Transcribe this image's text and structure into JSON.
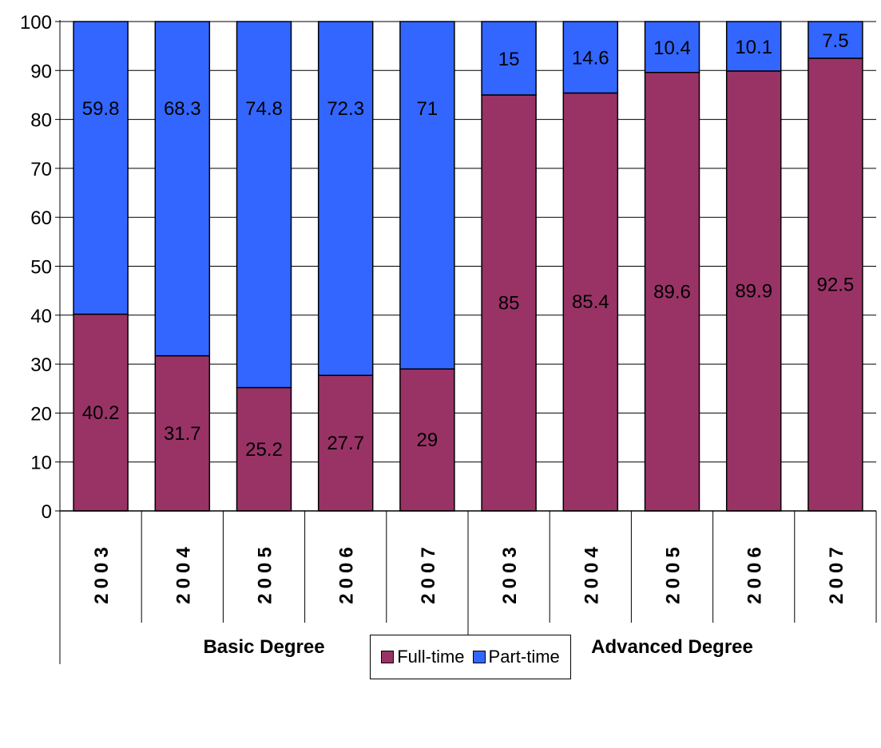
{
  "chart_data": {
    "type": "bar",
    "stacked": true,
    "groups": [
      {
        "label": "Basic Degree",
        "years": [
          "2003",
          "2004",
          "2005",
          "2006",
          "2007"
        ]
      },
      {
        "label": "Advanced Degree",
        "years": [
          "2003",
          "2004",
          "2005",
          "2006",
          "2007"
        ]
      }
    ],
    "series": [
      {
        "name": "Full-time",
        "color": "#993366",
        "values": [
          40.2,
          31.7,
          25.2,
          27.7,
          29,
          85,
          85.4,
          89.6,
          89.9,
          92.5
        ]
      },
      {
        "name": "Part-time",
        "color": "#3366FF",
        "values": [
          59.8,
          68.3,
          74.8,
          72.3,
          71,
          15,
          14.6,
          10.4,
          10.1,
          7.5
        ]
      }
    ],
    "yticks": [
      "0",
      "10",
      "20",
      "30",
      "40",
      "50",
      "60",
      "70",
      "80",
      "90",
      "100"
    ],
    "ylim": [
      0,
      100
    ],
    "grid": true,
    "legend_position": "bottom"
  }
}
